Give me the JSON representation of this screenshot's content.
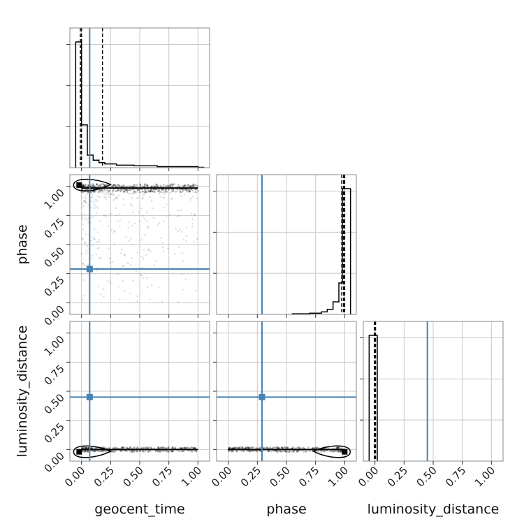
{
  "chart_data": {
    "type": "corner",
    "parameters": [
      "geocent_time",
      "phase",
      "luminosity_distance"
    ],
    "axis_labels": {
      "geocent_time": "geocent_time",
      "phase": "phase",
      "luminosity_distance": "luminosity_distance"
    },
    "tick_values": [
      0.0,
      0.25,
      0.5,
      0.75,
      1.0
    ],
    "tick_labels": [
      "0.00",
      "0.25",
      "0.50",
      "0.75",
      "1.00"
    ],
    "axis_range": [
      -0.1,
      1.1
    ],
    "grid": true,
    "truth_color": "#4682b4",
    "truths": {
      "geocent_time": 0.07,
      "phase": 0.29,
      "luminosity_distance": 0.45
    },
    "histograms": {
      "geocent_time": {
        "bin_edges": [
          -0.05,
          0.0,
          0.05,
          0.1,
          0.15,
          0.2,
          0.3,
          0.45,
          0.65,
          1.0,
          1.05
        ],
        "counts": [
          1.0,
          0.34,
          0.1,
          0.06,
          0.04,
          0.03,
          0.02,
          0.015,
          0.008,
          0.003
        ],
        "quantiles": [
          -0.01,
          0.0,
          0.18
        ]
      },
      "phase": {
        "bin_edges": [
          0.55,
          0.7,
          0.8,
          0.85,
          0.9,
          0.95,
          0.98,
          1.0,
          1.05
        ],
        "counts": [
          0.005,
          0.01,
          0.02,
          0.04,
          0.1,
          0.25,
          1.0,
          1.0
        ],
        "quantiles": [
          0.975,
          0.99,
          1.0
        ]
      },
      "luminosity_distance": {
        "bin_edges": [
          -0.05,
          0.0,
          0.02
        ],
        "counts": [
          1.0,
          1.0
        ],
        "quantiles": [
          -0.005,
          0.0,
          0.005
        ]
      }
    },
    "samples_2d": {
      "phase_vs_geocent_time": {
        "mode": [
          -0.02,
          1.01
        ],
        "dense_region": {
          "x": [
            0.0,
            1.0
          ],
          "y": [
            0.95,
            1.02
          ]
        },
        "scatter_region": {
          "x": [
            0.0,
            1.0
          ],
          "y": [
            0.0,
            1.0
          ]
        }
      },
      "luminosity_distance_vs_geocent_time": {
        "mode": [
          -0.02,
          -0.02
        ],
        "dense_region": {
          "x": [
            0.0,
            1.0
          ],
          "y": [
            -0.02,
            0.02
          ]
        }
      },
      "luminosity_distance_vs_phase": {
        "mode": [
          1.0,
          -0.02
        ],
        "dense_region": {
          "x": [
            0.0,
            1.0
          ],
          "y": [
            -0.02,
            0.02
          ]
        }
      }
    }
  }
}
